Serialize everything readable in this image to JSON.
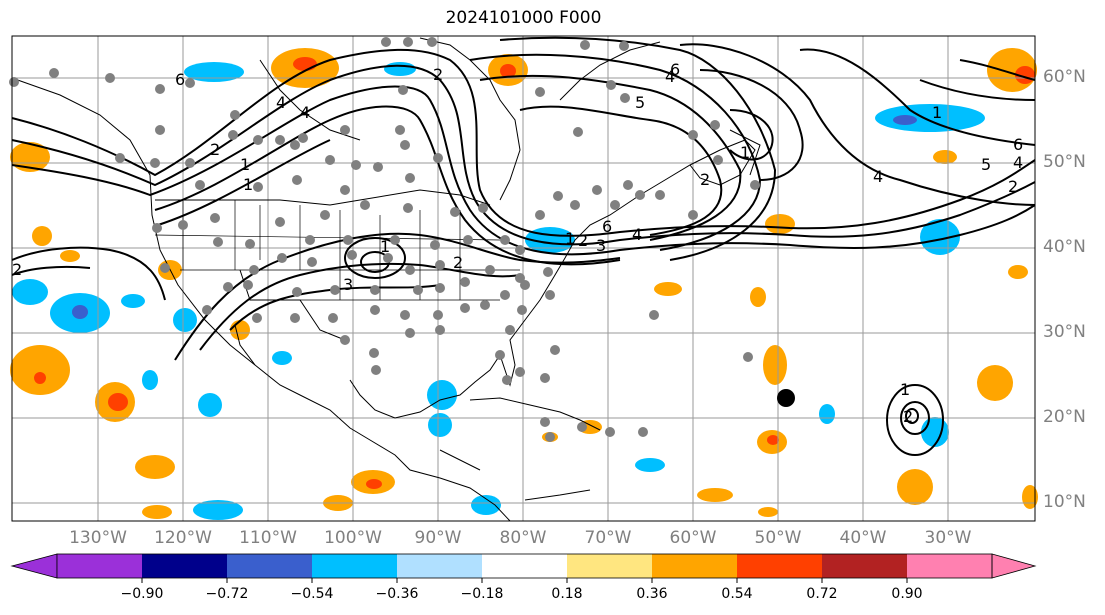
{
  "title": "2024101000 F000",
  "map": {
    "projection": "equirectangular",
    "lon_range": [
      -135,
      -25
    ],
    "lat_range": [
      8,
      65
    ],
    "gridlines": true,
    "lat_labels": [
      "60°N",
      "50°N",
      "40°N",
      "30°N",
      "20°N",
      "10°N"
    ],
    "lat_values": [
      60,
      50,
      40,
      30,
      20,
      10
    ],
    "lon_labels": [
      "130°W",
      "120°W",
      "110°W",
      "100°W",
      "90°W",
      "80°W",
      "70°W",
      "60°W",
      "50°W",
      "40°W",
      "30°W"
    ],
    "lon_values": [
      -130,
      -120,
      -110,
      -100,
      -90,
      -80,
      -70,
      -60,
      -50,
      -40,
      -30
    ],
    "contour_labels": [
      "6",
      "4",
      "2",
      "1",
      "1",
      "3",
      "5",
      "4",
      "1",
      "2",
      "1",
      "6",
      "4",
      "2",
      "5",
      "6",
      "4",
      "2",
      "1",
      "3",
      "2",
      "4",
      "2",
      "1",
      "2",
      "6",
      "4",
      "1",
      "2"
    ],
    "observation_points": {
      "color": "#808080",
      "description": "gray station dots"
    },
    "storm_marker": {
      "lon": -49,
      "lat": 22.3,
      "color": "#000000"
    }
  },
  "colorbar": {
    "ticks": [
      "−0.90",
      "−0.72",
      "−0.54",
      "−0.36",
      "−0.18",
      "0.18",
      "0.36",
      "0.54",
      "0.72",
      "0.90"
    ],
    "colors": [
      "#9b30d9",
      "#00008b",
      "#3a5fcd",
      "#00bfff",
      "#b0e0ff",
      "#ffffff",
      "#ffe680",
      "#ffa500",
      "#ff4000",
      "#b22222",
      "#ff80b0"
    ],
    "extend": "both"
  }
}
